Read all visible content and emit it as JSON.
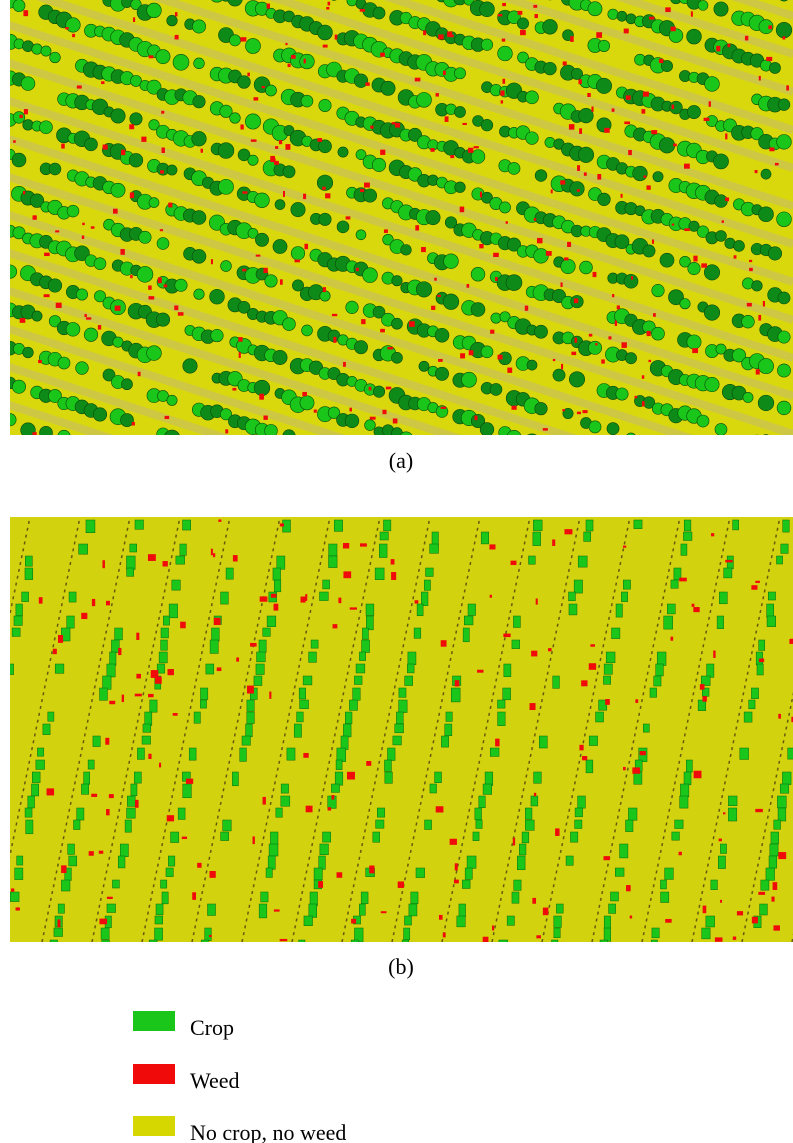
{
  "panels": [
    {
      "label": "(a)"
    },
    {
      "label": "(b)"
    }
  ],
  "legend": [
    {
      "label": "Crop",
      "color": "#19c619"
    },
    {
      "label": "Weed",
      "color": "#f00a0a"
    },
    {
      "label": "No crop, no weed",
      "color": "#d6d600"
    }
  ]
}
